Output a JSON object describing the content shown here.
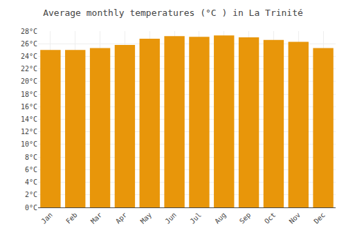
{
  "chart_data": {
    "type": "bar",
    "title": "Average monthly temperatures (°C ) in La Trinité",
    "categories": [
      "Jan",
      "Feb",
      "Mar",
      "Apr",
      "May",
      "Jun",
      "Jul",
      "Aug",
      "Sep",
      "Oct",
      "Nov",
      "Dec"
    ],
    "values": [
      25.0,
      25.0,
      25.3,
      25.8,
      26.8,
      27.2,
      27.1,
      27.3,
      27.0,
      26.6,
      26.3,
      25.3
    ],
    "color": "#E8960A",
    "ylim": [
      0,
      28
    ],
    "yticks": [
      {
        "value": 0,
        "label": "0°C"
      },
      {
        "value": 2,
        "label": "2°C"
      },
      {
        "value": 4,
        "label": "4°C"
      },
      {
        "value": 6,
        "label": "6°C"
      },
      {
        "value": 8,
        "label": "8°C"
      },
      {
        "value": 10,
        "label": "10°C"
      },
      {
        "value": 12,
        "label": "12°C"
      },
      {
        "value": 14,
        "label": "14°C"
      },
      {
        "value": 16,
        "label": "16°C"
      },
      {
        "value": 18,
        "label": "18°C"
      },
      {
        "value": 20,
        "label": "20°C"
      },
      {
        "value": 22,
        "label": "22°C"
      },
      {
        "value": 24,
        "label": "24°C"
      },
      {
        "value": 26,
        "label": "26°C"
      },
      {
        "value": 28,
        "label": "28°C"
      }
    ],
    "grid": true
  }
}
